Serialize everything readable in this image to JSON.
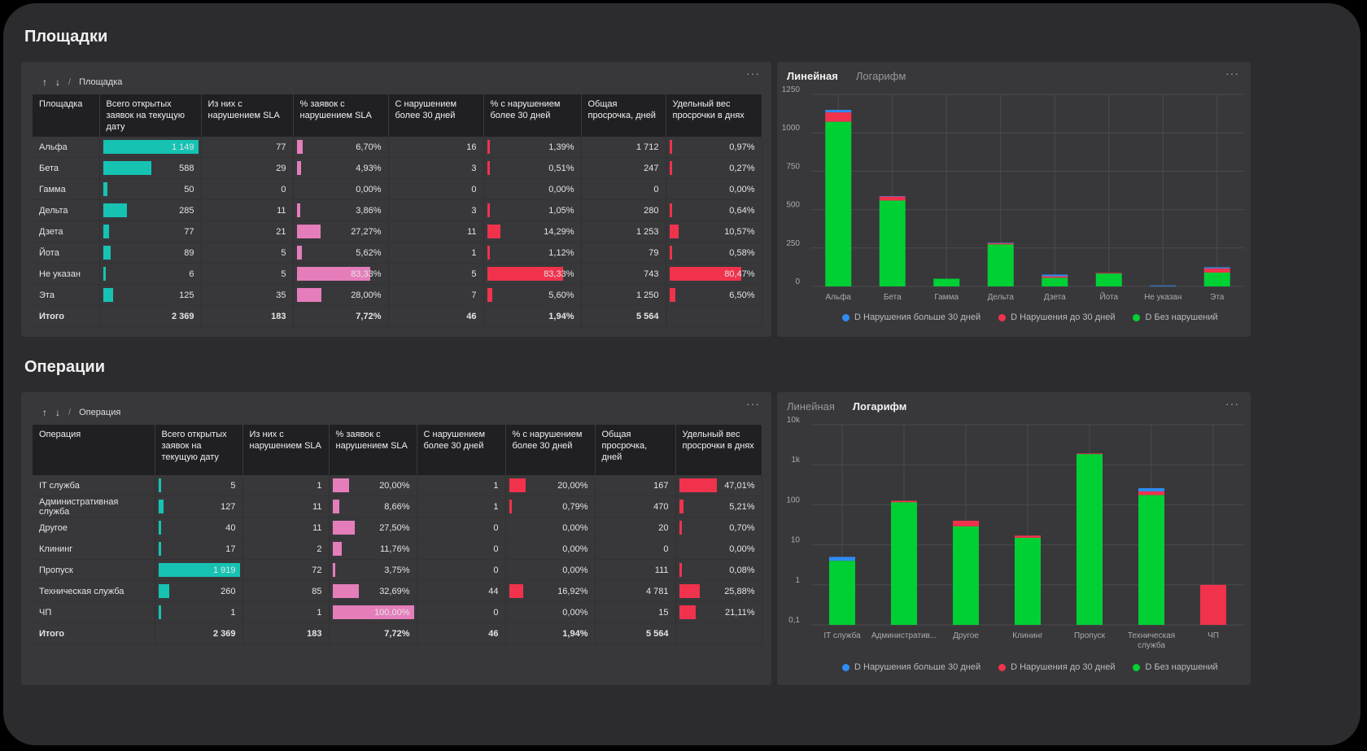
{
  "sections": {
    "sites_title": "Площадки",
    "ops_title": "Операции"
  },
  "colors": {
    "teal": "#16c3b3",
    "pink": "#e57dbb",
    "red": "#f0324c",
    "green": "#00d034",
    "blue": "#2f8cf0"
  },
  "sites_table": {
    "breadcrumb": "Площадка",
    "headers": [
      "Площадка",
      "Всего открытых заявок на текущую дату",
      "Из них с нарушением SLA",
      "% заявок с нарушением SLA",
      "С нарушением более 30 дней",
      "% с нарушением более 30 дней",
      "Общая просрочка, дней",
      "Удельный вес просрочки в днях"
    ],
    "rows": [
      {
        "name": "Альфа",
        "total": "1 149",
        "total_num": 1149,
        "sla": "77",
        "sla_pct": "6,70%",
        "sla_pct_num": 6.7,
        "d30": "16",
        "d30_pct": "1,39%",
        "d30_pct_num": 1.39,
        "overdue": "1 712",
        "weight": "0,97%",
        "weight_num": 0.97
      },
      {
        "name": "Бета",
        "total": "588",
        "total_num": 588,
        "sla": "29",
        "sla_pct": "4,93%",
        "sla_pct_num": 4.93,
        "d30": "3",
        "d30_pct": "0,51%",
        "d30_pct_num": 0.51,
        "overdue": "247",
        "weight": "0,27%",
        "weight_num": 0.27
      },
      {
        "name": "Гамма",
        "total": "50",
        "total_num": 50,
        "sla": "0",
        "sla_pct": "0,00%",
        "sla_pct_num": 0,
        "d30": "0",
        "d30_pct": "0,00%",
        "d30_pct_num": 0,
        "overdue": "0",
        "weight": "0,00%",
        "weight_num": 0
      },
      {
        "name": "Дельта",
        "total": "285",
        "total_num": 285,
        "sla": "11",
        "sla_pct": "3,86%",
        "sla_pct_num": 3.86,
        "d30": "3",
        "d30_pct": "1,05%",
        "d30_pct_num": 1.05,
        "overdue": "280",
        "weight": "0,64%",
        "weight_num": 0.64
      },
      {
        "name": "Дзета",
        "total": "77",
        "total_num": 77,
        "sla": "21",
        "sla_pct": "27,27%",
        "sla_pct_num": 27.27,
        "d30": "11",
        "d30_pct": "14,29%",
        "d30_pct_num": 14.29,
        "overdue": "1 253",
        "weight": "10,57%",
        "weight_num": 10.57
      },
      {
        "name": "Йота",
        "total": "89",
        "total_num": 89,
        "sla": "5",
        "sla_pct": "5,62%",
        "sla_pct_num": 5.62,
        "d30": "1",
        "d30_pct": "1,12%",
        "d30_pct_num": 1.12,
        "overdue": "79",
        "weight": "0,58%",
        "weight_num": 0.58
      },
      {
        "name": "Не указан",
        "total": "6",
        "total_num": 6,
        "sla": "5",
        "sla_pct": "83,33%",
        "sla_pct_num": 83.33,
        "d30": "5",
        "d30_pct": "83,33%",
        "d30_pct_num": 83.33,
        "overdue": "743",
        "weight": "80,47%",
        "weight_num": 80.47
      },
      {
        "name": "Эта",
        "total": "125",
        "total_num": 125,
        "sla": "35",
        "sla_pct": "28,00%",
        "sla_pct_num": 28.0,
        "d30": "7",
        "d30_pct": "5,60%",
        "d30_pct_num": 5.6,
        "overdue": "1 250",
        "weight": "6,50%",
        "weight_num": 6.5
      }
    ],
    "total_row": {
      "name": "Итого",
      "total": "2 369",
      "sla": "183",
      "sla_pct": "7,72%",
      "d30": "46",
      "d30_pct": "1,94%",
      "overdue": "5 564",
      "weight": ""
    }
  },
  "ops_table": {
    "breadcrumb": "Операция",
    "headers": [
      "Операция",
      "Всего открытых заявок на текущую дату",
      "Из них с нарушением SLA",
      "% заявок с нарушением SLA",
      "С нарушением более 30 дней",
      "% с нарушением более 30 дней",
      "Общая просрочка, дней",
      "Удельный вес просрочки в днях"
    ],
    "rows": [
      {
        "name": "IT служба",
        "total": "5",
        "total_num": 5,
        "sla": "1",
        "sla_pct": "20,00%",
        "sla_pct_num": 20.0,
        "d30": "1",
        "d30_pct": "20,00%",
        "d30_pct_num": 20.0,
        "overdue": "167",
        "weight": "47,01%",
        "weight_num": 47.01
      },
      {
        "name": "Административная служба",
        "total": "127",
        "total_num": 127,
        "sla": "11",
        "sla_pct": "8,66%",
        "sla_pct_num": 8.66,
        "d30": "1",
        "d30_pct": "0,79%",
        "d30_pct_num": 0.79,
        "overdue": "470",
        "weight": "5,21%",
        "weight_num": 5.21
      },
      {
        "name": "Другое",
        "total": "40",
        "total_num": 40,
        "sla": "11",
        "sla_pct": "27,50%",
        "sla_pct_num": 27.5,
        "d30": "0",
        "d30_pct": "0,00%",
        "d30_pct_num": 0,
        "overdue": "20",
        "weight": "0,70%",
        "weight_num": 0.7
      },
      {
        "name": "Клининг",
        "total": "17",
        "total_num": 17,
        "sla": "2",
        "sla_pct": "11,76%",
        "sla_pct_num": 11.76,
        "d30": "0",
        "d30_pct": "0,00%",
        "d30_pct_num": 0,
        "overdue": "0",
        "weight": "0,00%",
        "weight_num": 0
      },
      {
        "name": "Пропуск",
        "total": "1 919",
        "total_num": 1919,
        "sla": "72",
        "sla_pct": "3,75%",
        "sla_pct_num": 3.75,
        "d30": "0",
        "d30_pct": "0,00%",
        "d30_pct_num": 0,
        "overdue": "111",
        "weight": "0,08%",
        "weight_num": 0.08
      },
      {
        "name": "Техническая служба",
        "total": "260",
        "total_num": 260,
        "sla": "85",
        "sla_pct": "32,69%",
        "sla_pct_num": 32.69,
        "d30": "44",
        "d30_pct": "16,92%",
        "d30_pct_num": 16.92,
        "overdue": "4 781",
        "weight": "25,88%",
        "weight_num": 25.88
      },
      {
        "name": "ЧП",
        "total": "1",
        "total_num": 1,
        "sla": "1",
        "sla_pct": "100,00%",
        "sla_pct_num": 100.0,
        "d30": "0",
        "d30_pct": "0,00%",
        "d30_pct_num": 0,
        "overdue": "15",
        "weight": "21,11%",
        "weight_num": 21.11
      }
    ],
    "total_row": {
      "name": "Итого",
      "total": "2 369",
      "sla": "183",
      "sla_pct": "7,72%",
      "d30": "46",
      "d30_pct": "1,94%",
      "overdue": "5 564",
      "weight": ""
    }
  },
  "sites_chart": {
    "tabs": [
      "Линейная",
      "Логарифм"
    ],
    "active_tab": "Линейная",
    "legend": [
      "D Нарушения больше 30 дней",
      "D Нарушения до 30 дней",
      "D Без нарушений"
    ]
  },
  "ops_chart": {
    "tabs": [
      "Линейная",
      "Логарифм"
    ],
    "active_tab": "Логарифм",
    "legend": [
      "D Нарушения больше 30 дней",
      "D Нарушения до 30 дней",
      "D Без нарушений"
    ]
  },
  "chart_data": [
    {
      "type": "bar",
      "stacked": true,
      "scale": "linear",
      "categories": [
        "Альфа",
        "Бета",
        "Гамма",
        "Дельта",
        "Дзета",
        "Йота",
        "Не указан",
        "Эта"
      ],
      "yticks": [
        "0",
        "250",
        "500",
        "750",
        "1000",
        "1250"
      ],
      "ylim": [
        0,
        1250
      ],
      "series": [
        {
          "name": "D Без нарушений",
          "color": "#00d034",
          "values": [
            1072,
            559,
            50,
            274,
            56,
            84,
            1,
            90
          ]
        },
        {
          "name": "D Нарушения до 30 дней",
          "color": "#f0324c",
          "values": [
            61,
            26,
            0,
            8,
            10,
            4,
            0,
            28
          ]
        },
        {
          "name": "D Нарушения больше 30 дней",
          "color": "#2f8cf0",
          "values": [
            16,
            3,
            0,
            3,
            11,
            1,
            5,
            7
          ]
        }
      ],
      "grid": true,
      "legend_position": "bottom"
    },
    {
      "type": "bar",
      "stacked": true,
      "scale": "log",
      "categories": [
        "IT служба",
        "Административ...",
        "Другое",
        "Клининг",
        "Пропуск",
        "Техническая служба",
        "ЧП"
      ],
      "yticks": [
        "0,1",
        "1",
        "10",
        "100",
        "1k",
        "10k"
      ],
      "ylim": [
        0.1,
        10000
      ],
      "series": [
        {
          "name": "D Без нарушений",
          "color": "#00d034",
          "values": [
            4,
            116,
            29,
            15,
            1847,
            175,
            0
          ]
        },
        {
          "name": "D Нарушения до 30 дней",
          "color": "#f0324c",
          "values": [
            0,
            10,
            11,
            2,
            72,
            41,
            1
          ]
        },
        {
          "name": "D Нарушения больше 30 дней",
          "color": "#2f8cf0",
          "values": [
            1,
            1,
            0,
            0,
            0,
            44,
            0
          ]
        }
      ],
      "grid": true,
      "legend_position": "bottom"
    }
  ]
}
